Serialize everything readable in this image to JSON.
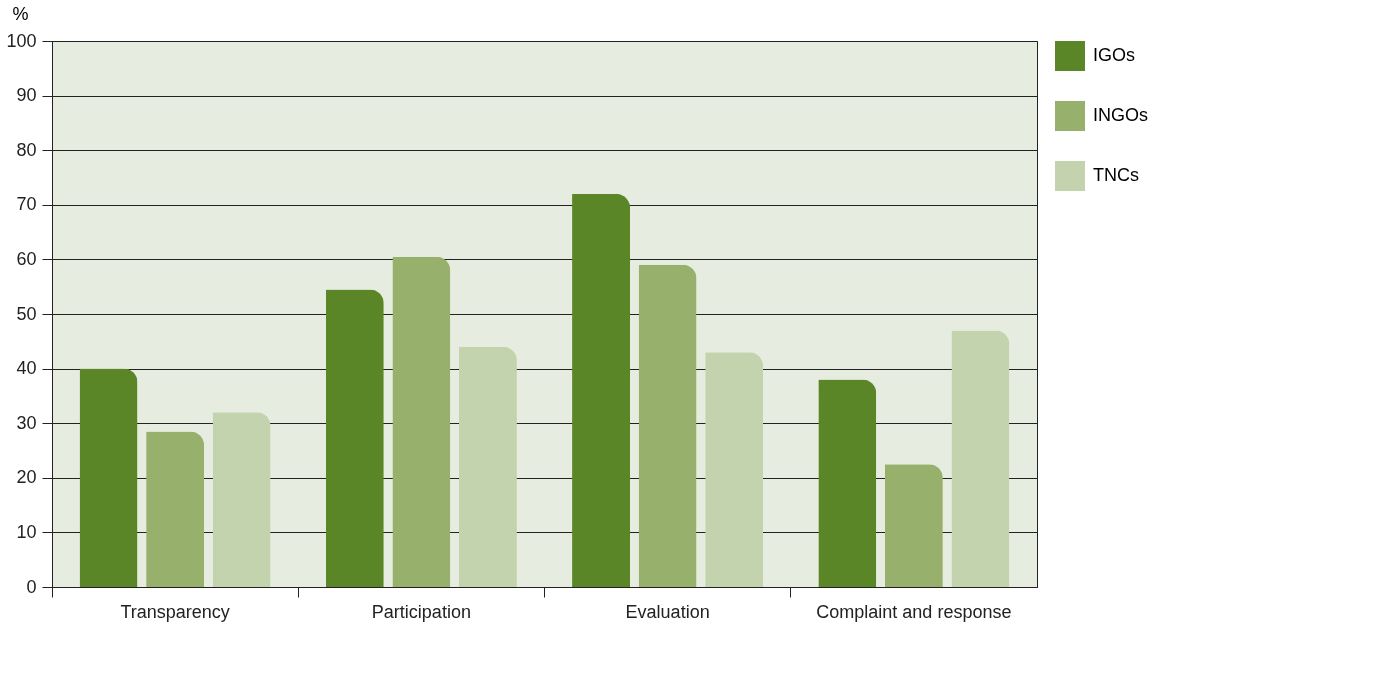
{
  "chart_data": {
    "type": "bar",
    "ylabel": "%",
    "categories": [
      "Transparency",
      "Participation",
      "Evaluation",
      "Complaint and response"
    ],
    "series": [
      {
        "name": "IGOs",
        "color": "#5b8628",
        "values": [
          40,
          54.5,
          72,
          38
        ]
      },
      {
        "name": "INGOs",
        "color": "#97b06c",
        "values": [
          28.5,
          60.5,
          59,
          22.5
        ]
      },
      {
        "name": "TNCs",
        "color": "#c3d3ad",
        "values": [
          32,
          44,
          43,
          47
        ]
      }
    ],
    "ylim": [
      0,
      100
    ],
    "yticks": [
      0,
      10,
      20,
      30,
      40,
      50,
      60,
      70,
      80,
      90,
      100
    ],
    "grid": "y",
    "legend": "right"
  }
}
